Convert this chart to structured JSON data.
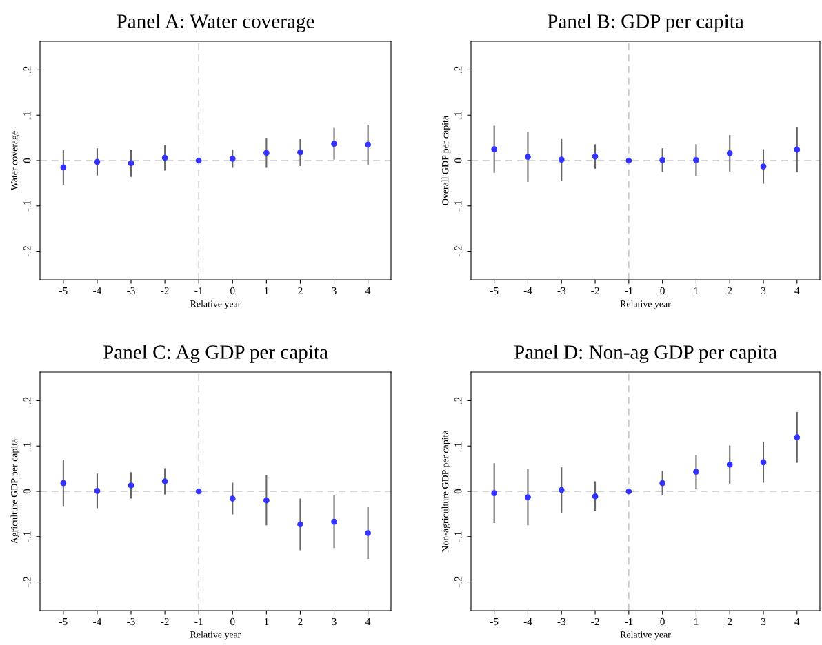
{
  "chart_data": [
    {
      "type": "scatter",
      "title": "Panel A: Water coverage",
      "xlabel": "Relative year",
      "ylabel": "Water coverage",
      "marker": "circle",
      "grid": false,
      "legend": false,
      "x": [
        -5,
        -4,
        -3,
        -2,
        -1,
        0,
        1,
        2,
        3,
        4
      ],
      "series": [
        {
          "color": "#3333ff",
          "values": [
            -0.015,
            -0.003,
            -0.006,
            0.006,
            0,
            0.004,
            0.017,
            0.018,
            0.037,
            0.035
          ],
          "errors": [
            0.038,
            0.03,
            0.03,
            0.028,
            null,
            0.02,
            0.033,
            0.03,
            0.035,
            0.044
          ]
        }
      ],
      "xlim": [
        -5.69,
        4.68
      ],
      "xticks": [
        -5,
        -4,
        -3,
        -2,
        -1,
        0,
        1,
        2,
        3,
        4
      ],
      "ylim": [
        -0.263,
        0.263
      ],
      "yticks": [
        {
          "value": -0.2,
          "label": "-.2"
        },
        {
          "value": -0.1,
          "label": "-.1"
        },
        0,
        {
          "value": 0.1,
          "label": ".1"
        },
        {
          "value": 0.2,
          "label": ".2"
        }
      ],
      "ref_lines": [
        {
          "axis": "y",
          "value": 0,
          "color": "#c8c8c8",
          "line_style": "dashed"
        },
        {
          "axis": "x",
          "value": -1,
          "color": "#c8c8c8",
          "line_style": "dashed"
        }
      ]
    },
    {
      "type": "scatter",
      "title": "Panel B: GDP per capita",
      "xlabel": "Relative year",
      "ylabel": "Overall GDP per capita",
      "marker": "circle",
      "grid": false,
      "legend": false,
      "x": [
        -5,
        -4,
        -3,
        -2,
        -1,
        0,
        1,
        2,
        3,
        4
      ],
      "series": [
        {
          "color": "#3333ff",
          "values": [
            0.025,
            0.008,
            0.002,
            0.009,
            0,
            0.001,
            0.001,
            0.016,
            -0.013,
            0.024
          ],
          "errors": [
            0.052,
            0.055,
            0.047,
            0.027,
            null,
            0.026,
            0.035,
            0.04,
            0.038,
            0.05
          ]
        }
      ],
      "xlim": [
        -5.69,
        4.68
      ],
      "xticks": [
        -5,
        -4,
        -3,
        -2,
        -1,
        0,
        1,
        2,
        3,
        4
      ],
      "ylim": [
        -0.263,
        0.263
      ],
      "yticks": [
        {
          "value": -0.2,
          "label": "-.2"
        },
        {
          "value": -0.1,
          "label": "-.1"
        },
        0,
        {
          "value": 0.1,
          "label": ".1"
        },
        {
          "value": 0.2,
          "label": ".2"
        }
      ],
      "ref_lines": [
        {
          "axis": "y",
          "value": 0,
          "color": "#c8c8c8",
          "line_style": "dashed"
        },
        {
          "axis": "x",
          "value": -1,
          "color": "#c8c8c8",
          "line_style": "dashed"
        }
      ]
    },
    {
      "type": "scatter",
      "title": "Panel C: Ag GDP per capita",
      "xlabel": "Relative year",
      "ylabel": "Agriculture GDP per capita",
      "marker": "circle",
      "grid": false,
      "legend": false,
      "x": [
        -5,
        -4,
        -3,
        -2,
        -1,
        0,
        1,
        2,
        3,
        4
      ],
      "series": [
        {
          "color": "#3333ff",
          "values": [
            0.018,
            0.001,
            0.013,
            0.022,
            0,
            -0.016,
            -0.02,
            -0.073,
            -0.067,
            -0.092
          ],
          "errors": [
            0.052,
            0.038,
            0.029,
            0.029,
            null,
            0.035,
            0.055,
            0.057,
            0.058,
            0.057
          ]
        }
      ],
      "xlim": [
        -5.69,
        4.68
      ],
      "xticks": [
        -5,
        -4,
        -3,
        -2,
        -1,
        0,
        1,
        2,
        3,
        4
      ],
      "ylim": [
        -0.263,
        0.263
      ],
      "yticks": [
        {
          "value": -0.2,
          "label": "-.2"
        },
        {
          "value": -0.1,
          "label": "-.1"
        },
        0,
        {
          "value": 0.1,
          "label": ".1"
        },
        {
          "value": 0.2,
          "label": ".2"
        }
      ],
      "ref_lines": [
        {
          "axis": "y",
          "value": 0,
          "color": "#c8c8c8",
          "line_style": "dashed"
        },
        {
          "axis": "x",
          "value": -1,
          "color": "#c8c8c8",
          "line_style": "dashed"
        }
      ]
    },
    {
      "type": "scatter",
      "title": "Panel D: Non-ag GDP per capita",
      "xlabel": "Relative year",
      "ylabel": "Non-agriculture GDP per capita",
      "marker": "circle",
      "grid": false,
      "legend": false,
      "x": [
        -5,
        -4,
        -3,
        -2,
        -1,
        0,
        1,
        2,
        3,
        4
      ],
      "series": [
        {
          "color": "#3333ff",
          "values": [
            -0.004,
            -0.013,
            0.003,
            -0.011,
            0,
            0.018,
            0.043,
            0.059,
            0.064,
            0.119
          ],
          "errors": [
            0.066,
            0.062,
            0.05,
            0.033,
            null,
            0.027,
            0.037,
            0.042,
            0.045,
            0.056
          ]
        }
      ],
      "xlim": [
        -5.69,
        4.68
      ],
      "xticks": [
        -5,
        -4,
        -3,
        -2,
        -1,
        0,
        1,
        2,
        3,
        4
      ],
      "ylim": [
        -0.263,
        0.263
      ],
      "yticks": [
        {
          "value": -0.2,
          "label": "-.2"
        },
        {
          "value": -0.1,
          "label": "-.1"
        },
        0,
        {
          "value": 0.1,
          "label": ".1"
        },
        {
          "value": 0.2,
          "label": ".2"
        }
      ],
      "ref_lines": [
        {
          "axis": "y",
          "value": 0,
          "color": "#c8c8c8",
          "line_style": "dashed"
        },
        {
          "axis": "x",
          "value": -1,
          "color": "#c8c8c8",
          "line_style": "dashed"
        }
      ]
    }
  ]
}
